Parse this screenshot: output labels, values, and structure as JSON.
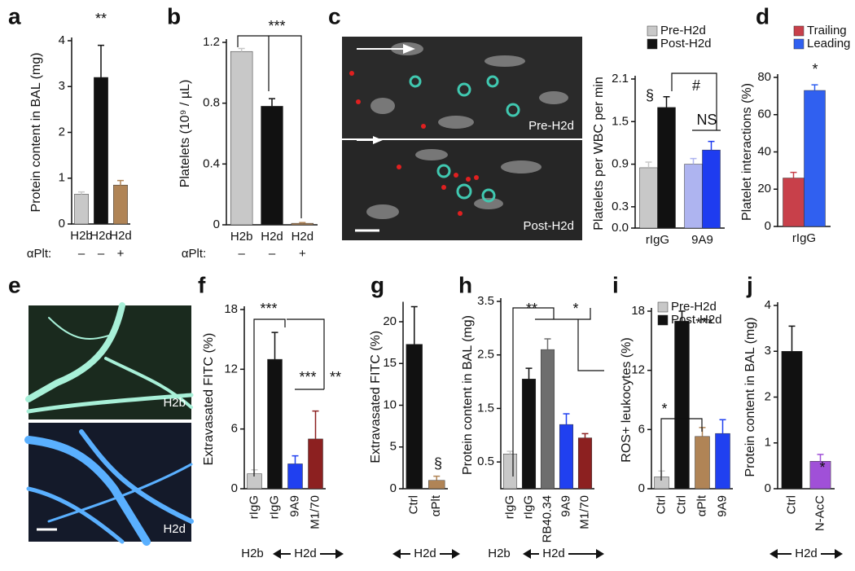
{
  "chart_data": [
    {
      "type": "bar",
      "panel": "a",
      "ylabel": "Protein content in BAL (mg)",
      "categories": [
        "H2b",
        "H2d",
        "H2d"
      ],
      "values": [
        0.65,
        3.2,
        0.85
      ],
      "errors": [
        0.05,
        0.7,
        0.1
      ],
      "colors": [
        "#c8c8c8",
        "#111111",
        "#b08456"
      ],
      "ylim": [
        0,
        4
      ],
      "yticks": [
        0,
        1,
        2,
        3,
        4
      ],
      "annotations": [
        "**"
      ],
      "row_label": "αPlt:",
      "row_values": [
        "–",
        "–",
        "+"
      ]
    },
    {
      "type": "bar",
      "ylabel": "Platelets (10⁹ / µL)",
      "panel": "b",
      "categories": [
        "H2b",
        "H2d",
        "H2d"
      ],
      "values": [
        1.14,
        0.78,
        0.01
      ],
      "errors": [
        0.02,
        0.05,
        0.005
      ],
      "colors": [
        "#c8c8c8",
        "#111111",
        "#b08456"
      ],
      "ylim": [
        0,
        1.2
      ],
      "yticks": [
        0,
        0.4,
        0.8,
        1.2
      ],
      "annotations": [
        "***"
      ],
      "row_label": "αPlt:",
      "row_values": [
        "–",
        "–",
        "+"
      ]
    },
    {
      "type": "grouped-bar",
      "ylabel": "Platelets per WBC per min",
      "categories": [
        "rIgG",
        "9A9"
      ],
      "series": [
        {
          "name": "Pre-H2d",
          "color": "#c8c8c8",
          "colors": [
            "#c8c8c8",
            "#aeb4f0"
          ],
          "values": [
            0.85,
            0.9
          ],
          "errors": [
            0.08,
            0.08
          ]
        },
        {
          "name": "Post-H2d",
          "color": "#111111",
          "colors": [
            "#111111",
            "#1e3cf0"
          ],
          "values": [
            1.7,
            1.1
          ],
          "errors": [
            0.15,
            0.12
          ]
        }
      ],
      "ylim": [
        0,
        2.1
      ],
      "yticks": [
        {
          "value": 0,
          "label": "0.0"
        },
        0.3,
        0.9,
        1.5,
        2.1
      ],
      "annotations": [
        "§",
        "#",
        "NS"
      ]
    },
    {
      "type": "grouped-bar",
      "panel": "d",
      "ylabel": "Platelet interactions (%)",
      "categories": [
        "rIgG"
      ],
      "series": [
        {
          "name": "Trailing",
          "color": "#c8404a",
          "colors": [
            "#c8404a"
          ],
          "values": [
            26
          ],
          "errors": [
            3
          ]
        },
        {
          "name": "Leading",
          "color": "#3060f0",
          "colors": [
            "#3060f0"
          ],
          "values": [
            73
          ],
          "errors": [
            3
          ]
        }
      ],
      "ylim": [
        0,
        80
      ],
      "yticks": [
        0,
        20,
        40,
        60,
        80
      ],
      "annotations": [
        "*"
      ]
    },
    {
      "type": "bar",
      "panel": "f",
      "ylabel": "Extravasated  FITC (%)",
      "categories": [
        "rIgG",
        "rIgG",
        "9A9",
        "M1/70"
      ],
      "values": [
        1.5,
        13,
        2.5,
        5
      ],
      "errors": [
        0.4,
        2.7,
        0.8,
        2.8
      ],
      "colors": [
        "#c8c8c8",
        "#111111",
        "#2040f0",
        "#8c2020"
      ],
      "ylim": [
        0,
        18
      ],
      "yticks": [
        0,
        6,
        12,
        18
      ],
      "annotations": [
        "***",
        "***",
        "**"
      ],
      "groups": [
        "H2b",
        "H2d"
      ]
    },
    {
      "type": "bar",
      "panel": "g",
      "ylabel": "Extravasated  FITC (%)",
      "categories": [
        "Ctrl",
        "αPlt"
      ],
      "values": [
        17.3,
        1
      ],
      "errors": [
        4.5,
        0.5
      ],
      "colors": [
        "#111111",
        "#b08456"
      ],
      "ylim": [
        0,
        22
      ],
      "yticks": [
        0,
        5,
        10,
        15,
        20
      ],
      "annotations": [
        "§"
      ],
      "groups": [
        "H2d"
      ]
    },
    {
      "type": "bar",
      "panel": "h",
      "ylabel": "Protein content in BAL (mg)",
      "categories": [
        "rIgG",
        "rIgG",
        "RB40.34",
        "9A9",
        "M1/70"
      ],
      "values": [
        0.65,
        2.05,
        2.6,
        1.2,
        0.95
      ],
      "errors": [
        0.05,
        0.2,
        0.2,
        0.2,
        0.08
      ],
      "colors": [
        "#c8c8c8",
        "#111111",
        "#6e6e6e",
        "#2040f0",
        "#8c2020"
      ],
      "ylim": [
        0,
        3.5
      ],
      "yticks": [
        0.5,
        1.5,
        2.5,
        3.5
      ],
      "annotations": [
        "**",
        "*"
      ],
      "groups": [
        "H2b",
        "H2d"
      ]
    },
    {
      "type": "bar",
      "panel": "i",
      "ylabel": "ROS+ leukocytes (%)",
      "categories": [
        "Ctrl",
        "Ctrl",
        "αPlt",
        "9A9"
      ],
      "values": [
        1.2,
        17,
        5.3,
        5.6
      ],
      "errors": [
        0.6,
        1,
        0.9,
        1.4
      ],
      "colors": [
        "#c8c8c8",
        "#111111",
        "#b08456",
        "#2040f0"
      ],
      "ylim": [
        0,
        18
      ],
      "yticks": [
        0,
        6,
        12,
        18
      ],
      "annotations": [
        "***",
        "*"
      ],
      "legend": [
        {
          "name": "Pre-H2d",
          "color": "#c8c8c8"
        },
        {
          "name": "Post-H2d",
          "color": "#111111"
        }
      ]
    },
    {
      "type": "bar",
      "panel": "j",
      "ylabel": "Protein content in BAL (mg)",
      "categories": [
        "Ctrl",
        "N-AcC"
      ],
      "values": [
        3,
        0.6
      ],
      "errors": [
        0.55,
        0.15
      ],
      "colors": [
        "#111111",
        "#a050d8"
      ],
      "ylim": [
        0,
        4
      ],
      "yticks": [
        0,
        1,
        2,
        3,
        4
      ],
      "annotations": [
        "*"
      ],
      "groups": [
        "H2d"
      ]
    }
  ],
  "micrographs": [
    {
      "panel": "c",
      "labels": [
        "Pre-H2d",
        "Post-H2d"
      ]
    },
    {
      "panel": "e",
      "labels": [
        "H2b",
        "H2d"
      ]
    }
  ]
}
